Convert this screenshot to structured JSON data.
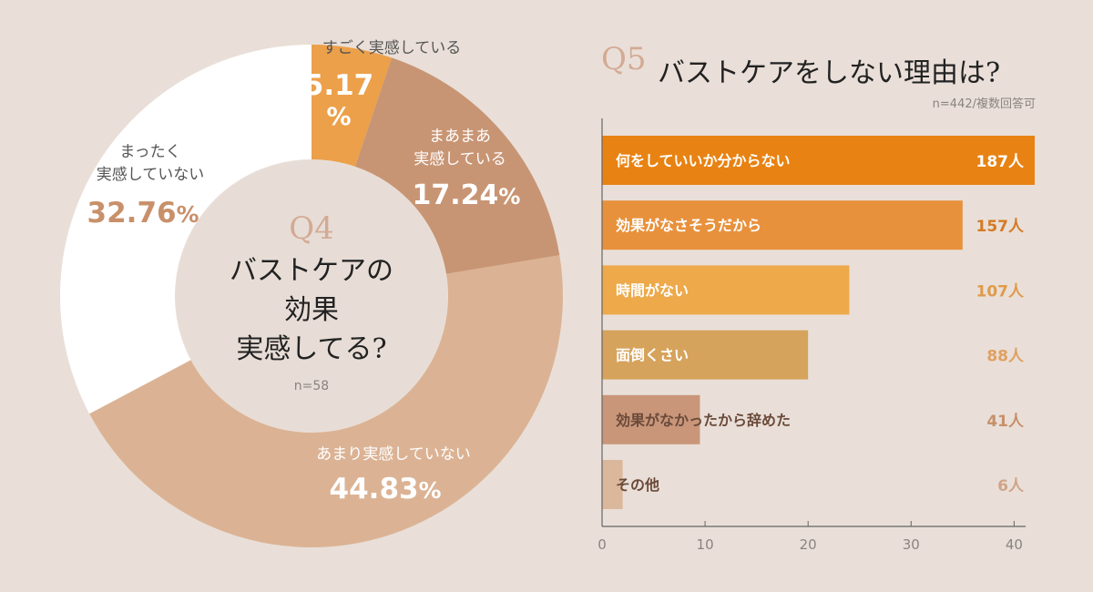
{
  "colors": {
    "background": "#e9dfd8",
    "hole": "#e7ddd6",
    "q_number": "#d4aa94",
    "text_dark": "#222222",
    "text_muted": "#8a8380",
    "text_white": "#ffffff",
    "axis": "#666666"
  },
  "chart_data": [
    {
      "type": "pie",
      "id": "q4",
      "question_number": "Q4",
      "title_lines": [
        "バストケアの",
        "効果",
        "実感してる?"
      ],
      "sample": "n=58",
      "slices": [
        {
          "label_lines": [
            "すごく実感している"
          ],
          "value": 5.17,
          "value_text": "5.17",
          "unit": "%",
          "color": "#eca04a",
          "label_color": "#555555",
          "value_color": "#ffffff"
        },
        {
          "label_lines": [
            "まあまあ",
            "実感している"
          ],
          "value": 17.24,
          "value_text": "17.24",
          "unit": "%",
          "color": "#c89574",
          "label_color": "#ffffff",
          "value_color": "#ffffff"
        },
        {
          "label_lines": [
            "あまり実感していない"
          ],
          "value": 44.83,
          "value_text": "44.83",
          "unit": "%",
          "color": "#dbb394",
          "label_color": "#ffffff",
          "value_color": "#ffffff"
        },
        {
          "label_lines": [
            "まったく",
            "実感していない"
          ],
          "value": 32.76,
          "value_text": "32.76",
          "unit": "%",
          "color": "#ffffff",
          "label_color": "#555555",
          "value_color": "#c8906a"
        }
      ]
    },
    {
      "type": "bar",
      "orientation": "horizontal",
      "id": "q5",
      "question_number": "Q5",
      "title": "バストケアをしない理由は?",
      "subtitle": "n=442/複数回答可",
      "categories": [
        "何をしていいか分からない",
        "効果がなさそうだから",
        "時間がない",
        "面倒くさい",
        "効果がなかったから辞めた",
        "その他"
      ],
      "values": [
        42,
        35,
        24,
        20,
        9.5,
        2
      ],
      "value_labels": [
        "187人",
        "157人",
        "107人",
        "88人",
        "41人",
        "6人"
      ],
      "bar_colors": [
        "#e88212",
        "#e8913c",
        "#eda94a",
        "#d6a35c",
        "#c9967a",
        "#dbb79c"
      ],
      "label_colors": [
        "#ffffff",
        "#ffffff",
        "#ffffff",
        "#ffffff",
        "#6b4a3a",
        "#6b4a3a"
      ],
      "value_label_colors": [
        "#ffffff",
        "#d47a24",
        "#e09a4a",
        "#e0a060",
        "#c8906a",
        "#d0a488"
      ],
      "xlim": [
        0,
        42
      ],
      "xticks": [
        0,
        10,
        20,
        30,
        40
      ],
      "xlabel": "",
      "ylabel": ""
    }
  ]
}
